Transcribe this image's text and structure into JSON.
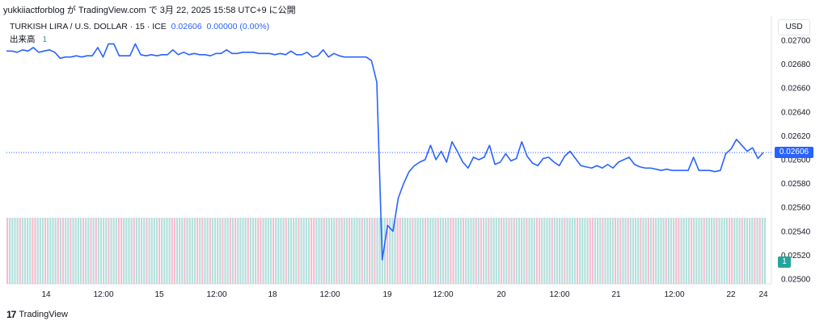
{
  "header": {
    "caption": "yukkiiactforblog が TradingView.com で 3月 22, 2025 15:58 UTC+9 に公開",
    "symbol": "TURKISH LIRA / U.S. DOLLAR · 15 · ICE",
    "last_value": "0.02606",
    "change": "0.00000 (0.00%)",
    "volume_label": "出来高",
    "volume_value": "1"
  },
  "currency_button": "USD",
  "price_tag": "0.02606",
  "volume_tag": "1",
  "brand": {
    "logo_text": "17",
    "name": "TradingView"
  },
  "colors": {
    "line": "#2962ff",
    "volume_up": "#b2dfdb",
    "volume_down": "#f8bbd0",
    "price_line": "#2962ff",
    "grid": "#f0f3fa"
  },
  "chart_data": {
    "type": "line",
    "title": "",
    "xlabel": "",
    "ylabel": "",
    "ylim": [
      0.025,
      0.0271
    ],
    "x_tick_labels": [
      "14",
      "12:00",
      "15",
      "12:00",
      "18",
      "12:00",
      "19",
      "12:00",
      "20",
      "12:00",
      "21",
      "12:00",
      "22",
      "24"
    ],
    "y_tick_labels": [
      "0.02700",
      "0.02680",
      "0.02660",
      "0.02640",
      "0.02620",
      "0.02600",
      "0.02580",
      "0.02560",
      "0.02540",
      "0.02520",
      "0.02500"
    ],
    "y_ticks": [
      0.027,
      0.0268,
      0.0266,
      0.0264,
      0.0262,
      0.026,
      0.0258,
      0.0256,
      0.0254,
      0.0252,
      0.025
    ],
    "last_price": 0.02606,
    "series": [
      {
        "values": [
          0.02691,
          0.02691,
          0.0269,
          0.02692,
          0.02691,
          0.02694,
          0.0269,
          0.02691,
          0.02692,
          0.0269,
          0.02685,
          0.02686,
          0.02686,
          0.02687,
          0.02686,
          0.02687,
          0.02687,
          0.02694,
          0.02686,
          0.02697,
          0.02697,
          0.02687,
          0.02687,
          0.02687,
          0.02697,
          0.02688,
          0.02687,
          0.02688,
          0.02687,
          0.02688,
          0.02688,
          0.02692,
          0.02688,
          0.0269,
          0.02688,
          0.02689,
          0.02688,
          0.02688,
          0.02687,
          0.02689,
          0.02689,
          0.02692,
          0.02689,
          0.02689,
          0.0269,
          0.0269,
          0.0269,
          0.02689,
          0.02689,
          0.02689,
          0.02688,
          0.02689,
          0.02688,
          0.02691,
          0.02688,
          0.02688,
          0.0269,
          0.02686,
          0.02687,
          0.02692,
          0.02686,
          0.02689,
          0.02687,
          0.02686,
          0.02686,
          0.02686,
          0.02686,
          0.02686,
          0.02683,
          0.02665,
          0.02516,
          0.02545,
          0.0254,
          0.02568,
          0.0258,
          0.0259,
          0.02595,
          0.02598,
          0.026,
          0.02612,
          0.026,
          0.02607,
          0.02598,
          0.02615,
          0.02607,
          0.02598,
          0.02593,
          0.02602,
          0.026,
          0.02602,
          0.02612,
          0.02596,
          0.02598,
          0.02605,
          0.02599,
          0.02601,
          0.02615,
          0.02603,
          0.02597,
          0.02595,
          0.02601,
          0.02602,
          0.02598,
          0.02595,
          0.02603,
          0.02607,
          0.02601,
          0.02595,
          0.02594,
          0.02593,
          0.02595,
          0.02593,
          0.02596,
          0.02593,
          0.02598,
          0.026,
          0.02602,
          0.02596,
          0.02594,
          0.02593,
          0.02593,
          0.02592,
          0.02591,
          0.02592,
          0.02591,
          0.02591,
          0.02591,
          0.02591,
          0.02602,
          0.02591,
          0.02591,
          0.02591,
          0.0259,
          0.02591,
          0.02605,
          0.02609,
          0.02617,
          0.02612,
          0.02607,
          0.0261,
          0.02601,
          0.02606
        ]
      }
    ]
  }
}
